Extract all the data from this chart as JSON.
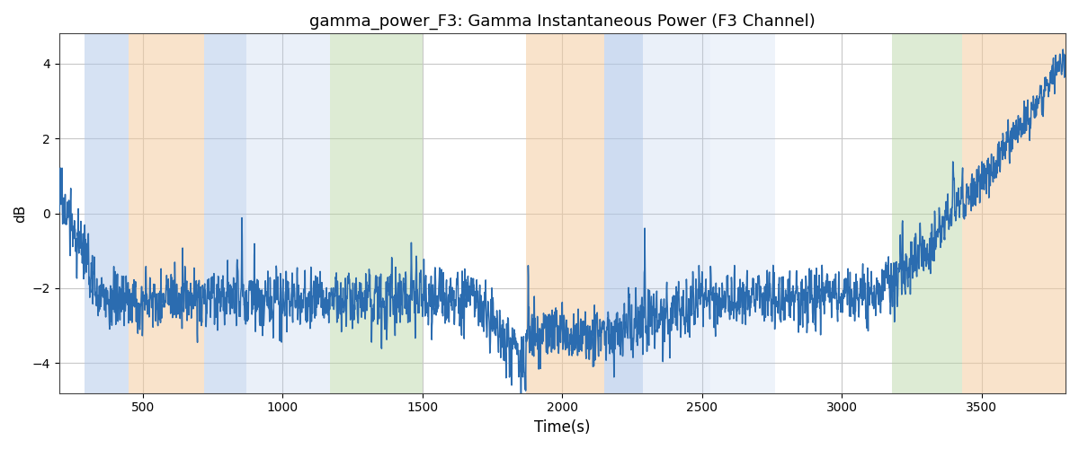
{
  "title": "gamma_power_F3: Gamma Instantaneous Power (F3 Channel)",
  "xlabel": "Time(s)",
  "ylabel": "dB",
  "xlim": [
    200,
    3800
  ],
  "ylim": [
    -4.8,
    4.8
  ],
  "yticks": [
    -4,
    -2,
    0,
    2,
    4
  ],
  "xticks": [
    500,
    1000,
    1500,
    2000,
    2500,
    3000,
    3500
  ],
  "line_color": "#2b6cb0",
  "line_width": 1.1,
  "bg_color": "#ffffff",
  "grid_color": "#c8c8c8",
  "bands": [
    {
      "xmin": 290,
      "xmax": 450,
      "color": "#aec6e8",
      "alpha": 0.5
    },
    {
      "xmin": 450,
      "xmax": 720,
      "color": "#f5c898",
      "alpha": 0.5
    },
    {
      "xmin": 720,
      "xmax": 870,
      "color": "#aec6e8",
      "alpha": 0.5
    },
    {
      "xmin": 870,
      "xmax": 1170,
      "color": "#aec6e8",
      "alpha": 0.25
    },
    {
      "xmin": 1170,
      "xmax": 1500,
      "color": "#b5d4a0",
      "alpha": 0.45
    },
    {
      "xmin": 1870,
      "xmax": 2150,
      "color": "#f5c898",
      "alpha": 0.5
    },
    {
      "xmin": 2150,
      "xmax": 2290,
      "color": "#aec6e8",
      "alpha": 0.6
    },
    {
      "xmin": 2290,
      "xmax": 2530,
      "color": "#aec6e8",
      "alpha": 0.25
    },
    {
      "xmin": 2530,
      "xmax": 2760,
      "color": "#aec6e8",
      "alpha": 0.2
    },
    {
      "xmin": 3180,
      "xmax": 3430,
      "color": "#b5d4a0",
      "alpha": 0.45
    },
    {
      "xmin": 3430,
      "xmax": 3800,
      "color": "#f5c898",
      "alpha": 0.5
    }
  ],
  "seed": 17,
  "n_points": 3601,
  "t_start": 200,
  "t_end": 3800
}
